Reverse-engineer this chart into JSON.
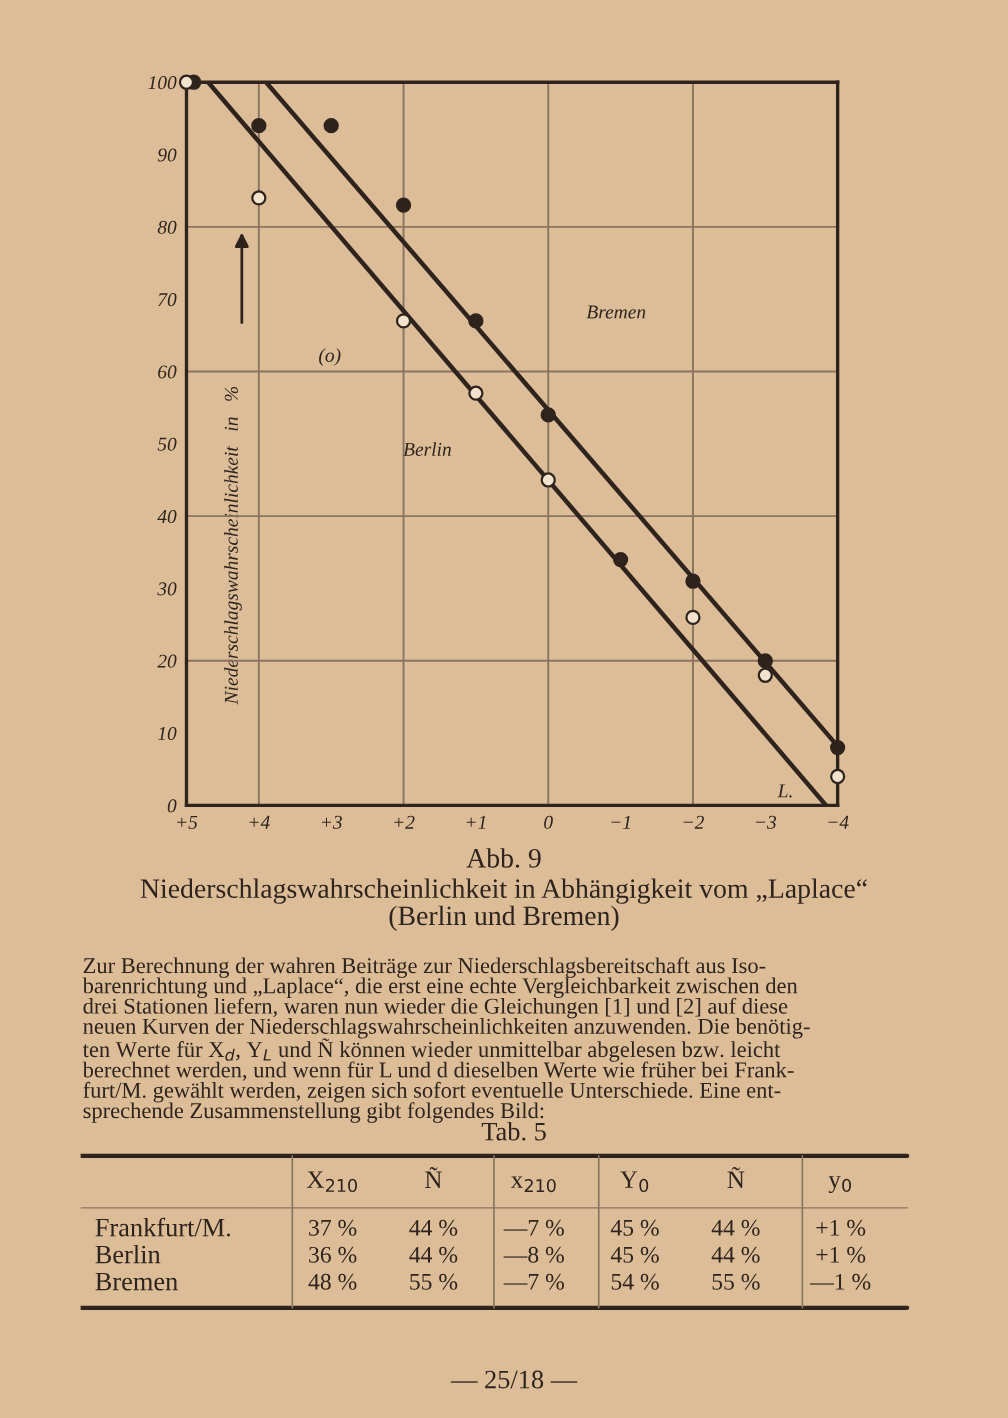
{
  "chart_data": [
    {
      "type": "scatter",
      "title": "Abb. 9",
      "subtitle": "Niederschlagswahrscheinlichkeit in Abhängigkeit vom „Laplace“\n(Berlin und Bremen)",
      "xlabel": "L.",
      "ylabel": "Niederschlagswahrscheinlichkeit   in   %",
      "xlim": [
        5,
        -4
      ],
      "ylim": [
        0,
        100
      ],
      "xticks": [
        {
          "value": 5,
          "label": "+5"
        },
        {
          "value": 4,
          "label": "+4"
        },
        {
          "value": 3,
          "label": "+3"
        },
        {
          "value": 2,
          "label": "+2"
        },
        {
          "value": 1,
          "label": "+1"
        },
        0,
        {
          "value": -1,
          "label": "−1"
        },
        {
          "value": -2,
          "label": "−2"
        },
        {
          "value": -3,
          "label": "−3"
        },
        {
          "value": -4,
          "label": "−4"
        }
      ],
      "yticks": [
        0,
        10,
        20,
        30,
        40,
        50,
        60,
        70,
        80,
        90,
        100
      ],
      "grid": true,
      "series": [
        {
          "type": "line",
          "color": "#2e241d",
          "x": [
            3.9,
            -4
          ],
          "values": [
            100,
            8.2
          ]
        },
        {
          "type": "line",
          "color": "#2e241d",
          "x": [
            4.7,
            -3.84
          ],
          "values": [
            100,
            0
          ]
        },
        {
          "type": "scatter",
          "marker": "circle",
          "color": "#2e241d",
          "x": [
            4.9,
            4,
            3,
            2,
            1,
            0,
            -1,
            -2,
            -3,
            -4
          ],
          "values": [
            100,
            94,
            94,
            83,
            67,
            54,
            34,
            31,
            20,
            8
          ]
        },
        {
          "type": "scatter",
          "marker": "circle",
          "color": "#f3e3cc",
          "x": [
            5,
            4,
            2,
            1,
            0,
            -2,
            -3,
            -4
          ],
          "values": [
            100,
            84,
            67,
            57,
            45,
            26,
            18,
            4
          ]
        }
      ],
      "annotations": [
        "Bremen",
        "Berlin",
        "(o)",
        "Zur Berechnung der wahren Beiträge zur Niederschlagsbereitschaft aus Iso-\nbarenrichtung und „Laplace“, die erst eine echte Vergleichbarkeit zwischen den\ndrei Stationen liefern, waren nun wieder die Gleichungen [1] und [2] auf diese\nneuen Kurven der Niederschlagswahrscheinlichkeiten anzuwenden. Die benötig-\nten Werte für X$_{d}$, Y$_{L}$ und Ñ können wieder unmittelbar abgelesen bzw. leicht\nberechnet werden, und wenn für L und d dieselben Werte wie früher bei Frank-\nfurt/M. gewählt werden, zeigen sich sofort eventuelle Unterschiede. Eine ent-\nsprechende Zusammenstellung gibt folgendes Bild:"
      ]
    },
    {
      "type": "other",
      "title": "Tab. 5",
      "categories": [
        null,
        "X$_{210}$",
        "Ñ",
        "x$_{210}$",
        "Y$_{0}$",
        "Ñ",
        "y$_{0}$"
      ],
      "y_categories": [
        "Frankfurt/M.",
        "Berlin",
        "Bremen"
      ],
      "cell_labels": [
        [
          "37 %",
          "44 %",
          "—7 %",
          "45 %",
          "44 %",
          "+1 %"
        ],
        [
          "36 %",
          "44 %",
          "—8 %",
          "45 %",
          "44 %",
          "+1 %"
        ],
        [
          "48 %",
          "55 %",
          "—7 %",
          "54 %",
          "55 %",
          "—1 %"
        ]
      ],
      "annotations": [
        "— 25/18 —"
      ]
    }
  ]
}
